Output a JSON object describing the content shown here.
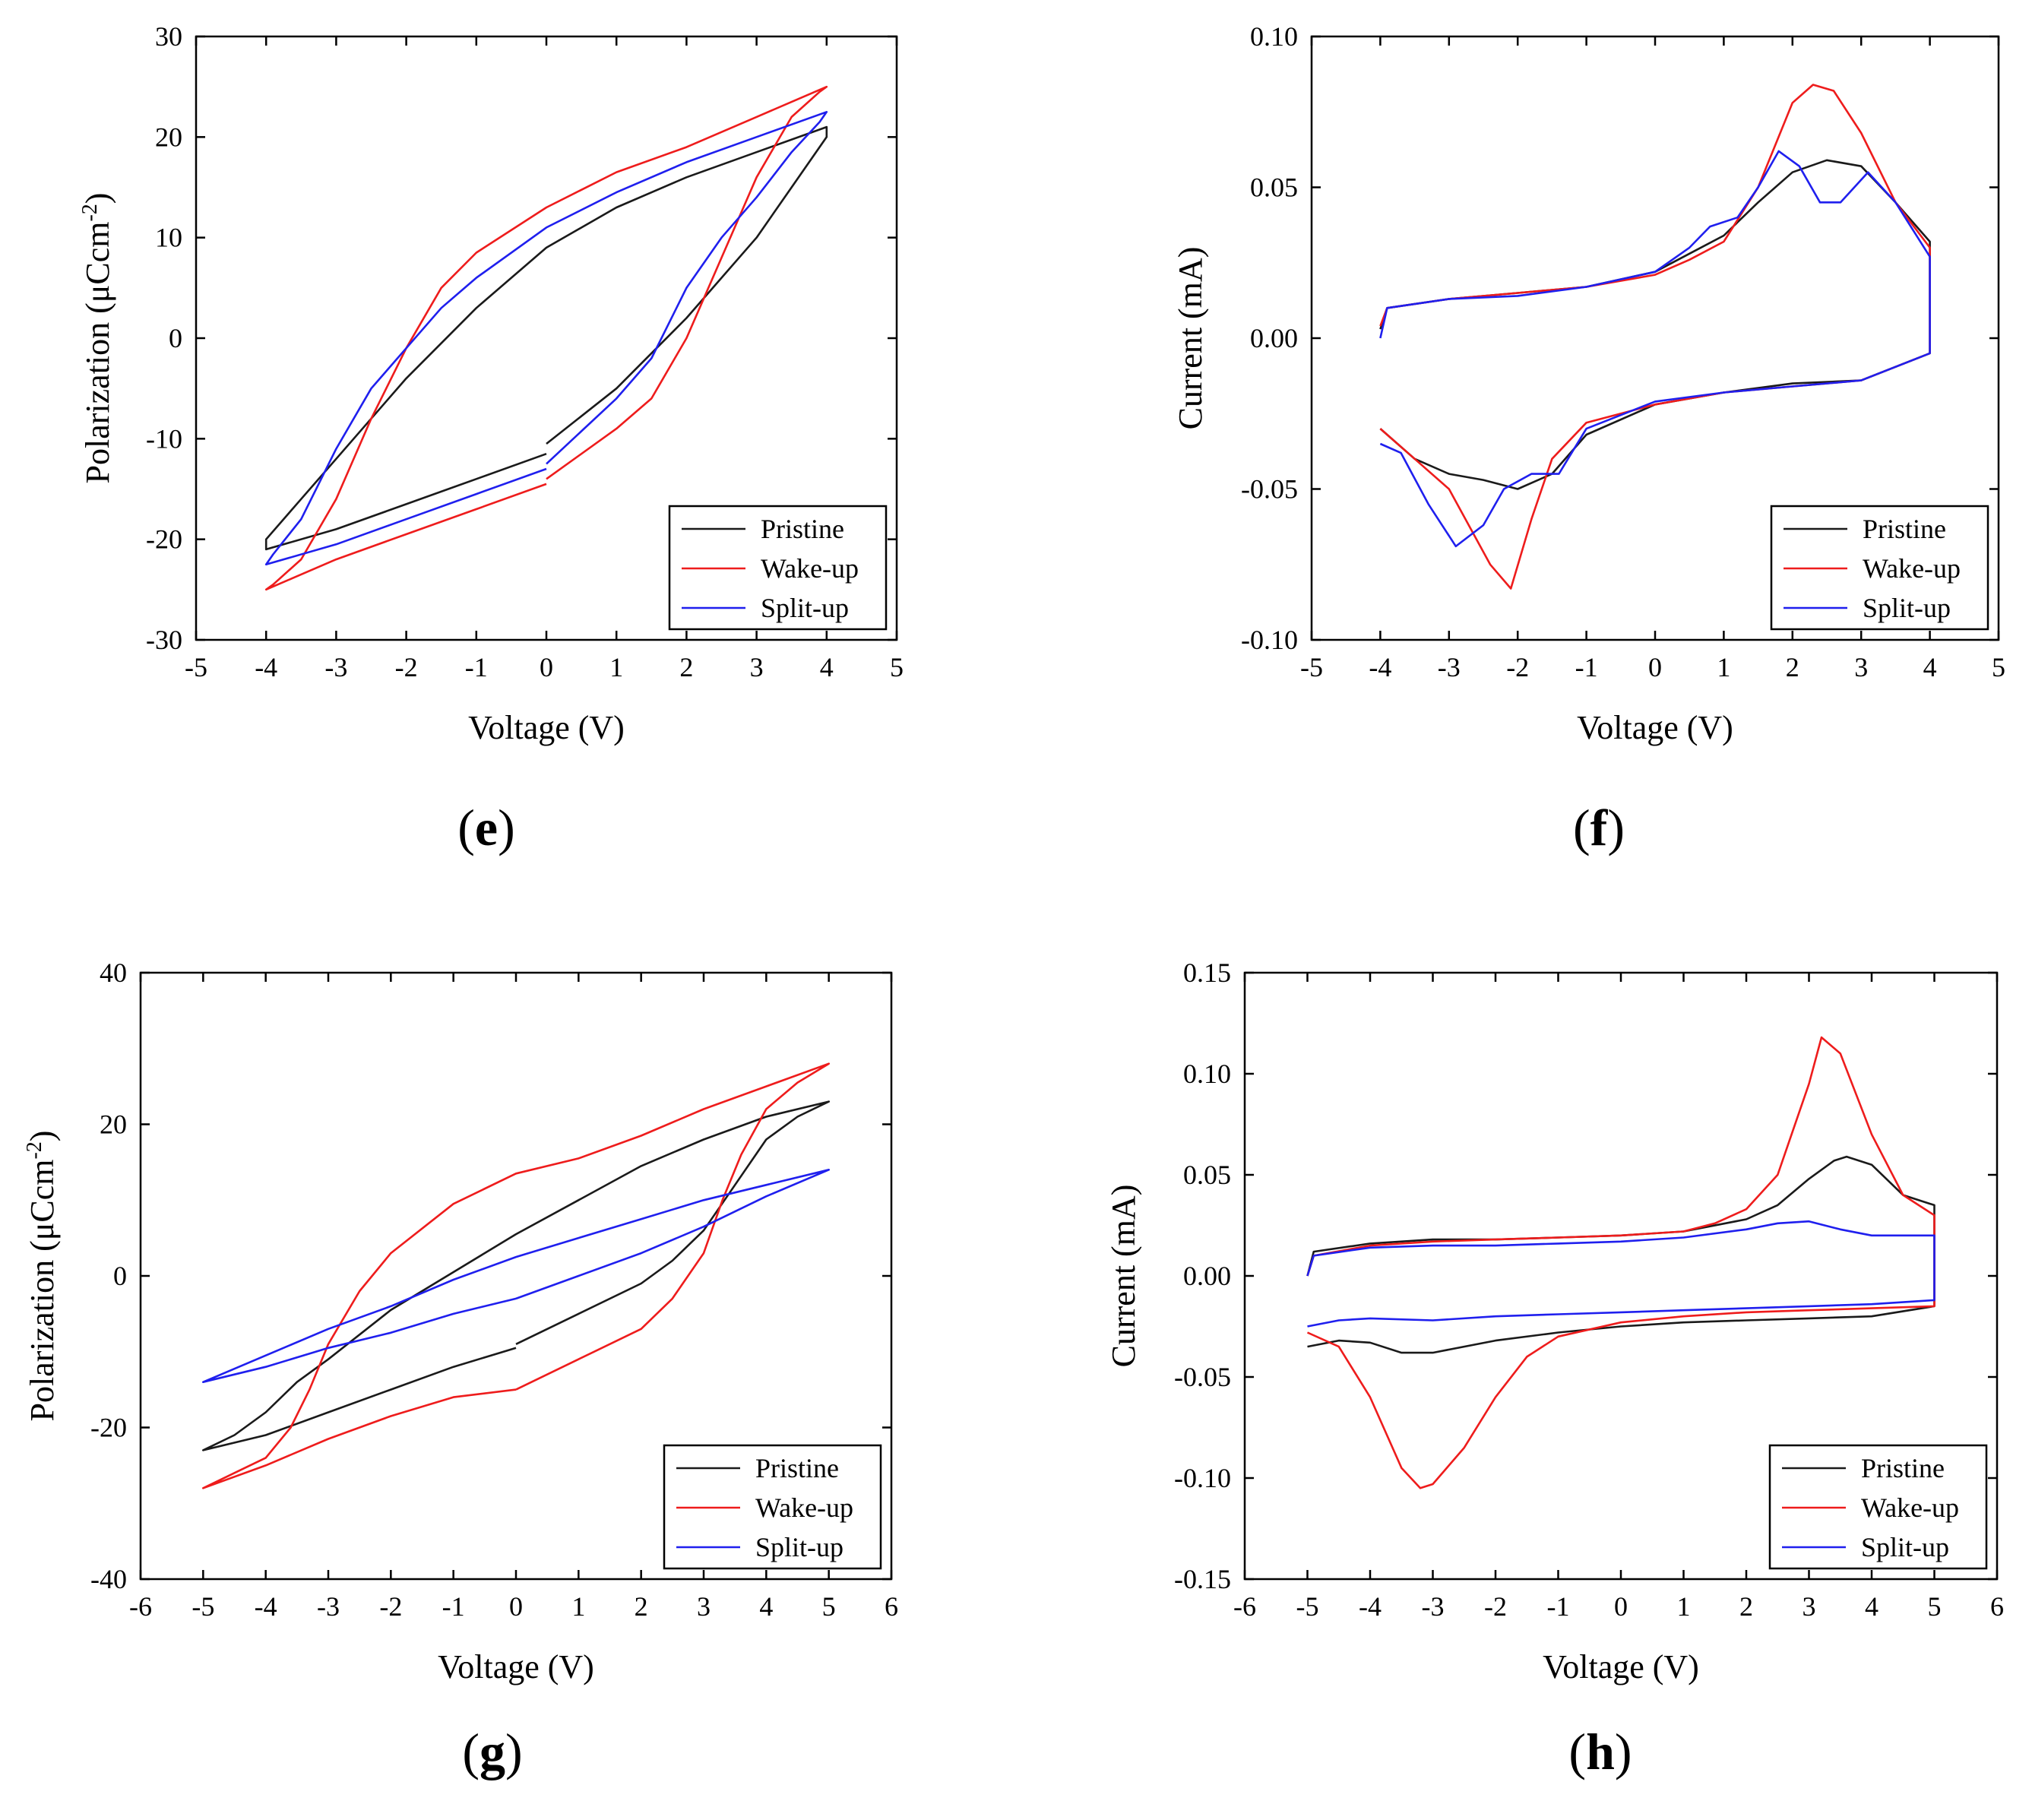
{
  "chart_data": [
    {
      "panel": "e",
      "type": "line",
      "xlabel": "Voltage (V)",
      "ylabel": "Polarization (μCcm",
      "ylabel_sup": "-2",
      "ylabel_close": ")",
      "xlim": [
        -5,
        5
      ],
      "ylim": [
        -30,
        30
      ],
      "xticks": [
        -5,
        -4,
        -3,
        -2,
        -1,
        0,
        1,
        2,
        3,
        4,
        5
      ],
      "yticks": [
        -30,
        -20,
        -10,
        0,
        10,
        20,
        30
      ],
      "legend": [
        "Pristine",
        "Wake-up",
        "Split-up"
      ],
      "series": [
        {
          "name": "Pristine",
          "color": "#1a1a1a",
          "x": [
            0,
            1,
            2,
            3,
            3.5,
            4,
            4,
            3,
            2,
            1,
            0,
            -1,
            -2,
            -3,
            -3.5,
            -4,
            -4,
            -3,
            -2,
            -1,
            0
          ],
          "y": [
            -10.5,
            -5,
            2,
            10,
            15,
            20,
            21,
            18.5,
            16,
            13,
            9,
            3,
            -4,
            -12,
            -16,
            -20,
            -21,
            -19,
            -16.5,
            -14,
            -11.5
          ]
        },
        {
          "name": "Wake-up",
          "color": "#ee1c1c",
          "x": [
            0,
            1,
            1.5,
            2,
            2.5,
            3,
            3.5,
            3.9,
            4,
            3,
            2,
            1,
            0,
            -1,
            -1.5,
            -2,
            -2.5,
            -3,
            -3.5,
            -3.9,
            -4,
            -3,
            -2,
            -1,
            0
          ],
          "y": [
            -14,
            -9,
            -6,
            0,
            8,
            16,
            22,
            24.5,
            25,
            22,
            19,
            16.5,
            13,
            8.5,
            5,
            -1,
            -8,
            -16,
            -22,
            -24.5,
            -25,
            -22,
            -19.5,
            -17,
            -14.5
          ]
        },
        {
          "name": "Split-up",
          "color": "#1f1fee",
          "x": [
            0,
            1,
            1.5,
            2,
            2.5,
            3,
            3.5,
            3.9,
            4,
            3,
            2,
            1,
            0,
            -1,
            -1.5,
            -2,
            -2.5,
            -3,
            -3.5,
            -3.9,
            -4,
            -3,
            -2,
            -1,
            0
          ],
          "y": [
            -12.5,
            -6,
            -2,
            5,
            10,
            14,
            18.5,
            21.5,
            22.5,
            20,
            17.5,
            14.5,
            11,
            6,
            3,
            -1,
            -5,
            -11,
            -18,
            -21.5,
            -22.5,
            -20.5,
            -18,
            -15.5,
            -13
          ]
        }
      ]
    },
    {
      "panel": "f",
      "type": "line",
      "xlabel": "Voltage (V)",
      "ylabel": "Current (mA)",
      "xlim": [
        -5,
        5
      ],
      "ylim": [
        -0.1,
        0.1
      ],
      "xticks": [
        -5,
        -4,
        -3,
        -2,
        -1,
        0,
        1,
        2,
        3,
        4,
        5
      ],
      "yticks": [
        -0.1,
        -0.05,
        0.0,
        0.05,
        0.1
      ],
      "ytick_labels": [
        "-0.10",
        "-0.05",
        "0.00",
        "0.05",
        "0.10"
      ],
      "legend": [
        "Pristine",
        "Wake-up",
        "Split-up"
      ],
      "series": [
        {
          "name": "Pristine",
          "color": "#1a1a1a",
          "x": [
            -4,
            -3.9,
            -3,
            -2,
            -1,
            0,
            0.5,
            1,
            1.5,
            2,
            2.5,
            3,
            3.5,
            4,
            4,
            3,
            2,
            1,
            0,
            -1,
            -1.5,
            -2,
            -2.5,
            -3,
            -3.5,
            -4,
            -4
          ],
          "y": [
            0.003,
            0.01,
            0.013,
            0.015,
            0.017,
            0.022,
            0.028,
            0.034,
            0.045,
            0.055,
            0.059,
            0.057,
            0.045,
            0.032,
            -0.005,
            -0.014,
            -0.015,
            -0.018,
            -0.022,
            -0.032,
            -0.045,
            -0.05,
            -0.047,
            -0.045,
            -0.04,
            -0.03,
            -0.03
          ]
        },
        {
          "name": "Wake-up",
          "color": "#ee1c1c",
          "x": [
            -4,
            -3.9,
            -3,
            -2,
            -1,
            0,
            0.5,
            1,
            1.5,
            2,
            2.3,
            2.6,
            3,
            3.5,
            4,
            4,
            3,
            2,
            1,
            0,
            -1,
            -1.5,
            -1.8,
            -2.1,
            -2.4,
            -3,
            -3.5,
            -4,
            -4
          ],
          "y": [
            0.004,
            0.01,
            0.013,
            0.015,
            0.017,
            0.021,
            0.026,
            0.032,
            0.05,
            0.078,
            0.084,
            0.082,
            0.068,
            0.045,
            0.03,
            -0.005,
            -0.014,
            -0.016,
            -0.018,
            -0.022,
            -0.028,
            -0.04,
            -0.06,
            -0.083,
            -0.075,
            -0.05,
            -0.04,
            -0.03,
            -0.03
          ]
        },
        {
          "name": "Split-up",
          "color": "#1f1fee",
          "x": [
            -4,
            -3.9,
            -3,
            -2,
            -1,
            0,
            0.5,
            0.8,
            1.2,
            1.5,
            1.8,
            2.1,
            2.4,
            2.7,
            3.1,
            3.5,
            4,
            4,
            3,
            2,
            1,
            0,
            -1,
            -1.4,
            -1.8,
            -2.2,
            -2.5,
            -2.9,
            -3.3,
            -3.7,
            -4,
            -4
          ],
          "y": [
            0.0,
            0.01,
            0.013,
            0.014,
            0.017,
            0.022,
            0.03,
            0.037,
            0.04,
            0.05,
            0.062,
            0.057,
            0.045,
            0.045,
            0.055,
            0.045,
            0.027,
            -0.005,
            -0.014,
            -0.016,
            -0.018,
            -0.021,
            -0.03,
            -0.045,
            -0.045,
            -0.05,
            -0.062,
            -0.069,
            -0.055,
            -0.038,
            -0.035,
            -0.035
          ]
        }
      ]
    },
    {
      "panel": "g",
      "type": "line",
      "xlabel": "Voltage (V)",
      "ylabel": "Polarization (μCcm",
      "ylabel_sup": "-2",
      "ylabel_close": ")",
      "xlim": [
        -6,
        6
      ],
      "ylim": [
        -40,
        40
      ],
      "xticks": [
        -6,
        -5,
        -4,
        -3,
        -2,
        -1,
        0,
        1,
        2,
        3,
        4,
        5,
        6
      ],
      "yticks": [
        -40,
        -20,
        0,
        20,
        40
      ],
      "legend": [
        "Pristine",
        "Wake-up",
        "Split-up"
      ],
      "series": [
        {
          "name": "Pristine",
          "color": "#1a1a1a",
          "x": [
            0,
            1,
            2,
            2.5,
            3,
            3.5,
            4,
            4.5,
            5,
            4,
            3,
            2,
            1,
            0,
            -1,
            -2,
            -3,
            -3.5,
            -4,
            -4.5,
            -5,
            -4,
            -3,
            -2,
            -1,
            0
          ],
          "y": [
            -9,
            -5,
            -1,
            2,
            6,
            12,
            18,
            21,
            23,
            21,
            18,
            14.5,
            10,
            5.5,
            0.5,
            -4.5,
            -11,
            -14,
            -18,
            -21,
            -23,
            -21,
            -18,
            -15,
            -12,
            -9.5
          ]
        },
        {
          "name": "Wake-up",
          "color": "#ee1c1c",
          "x": [
            0,
            1,
            2,
            2.5,
            3,
            3.3,
            3.6,
            4,
            4.5,
            5,
            4,
            3,
            2,
            1,
            0,
            -1,
            -2,
            -2.5,
            -3,
            -3.3,
            -3.6,
            -4,
            -4.5,
            -5,
            -4,
            -3,
            -2,
            -1,
            0
          ],
          "y": [
            -15,
            -11,
            -7,
            -3,
            3,
            10,
            16,
            22,
            25.5,
            28,
            25,
            22,
            18.5,
            15.5,
            13.5,
            9.5,
            3,
            -2,
            -9,
            -15,
            -20,
            -24,
            -26,
            -28,
            -25,
            -21.5,
            -18.5,
            -16,
            -15
          ]
        },
        {
          "name": "Split-up",
          "color": "#1f1fee",
          "x": [
            0,
            1,
            2,
            3,
            4,
            5,
            4,
            3,
            2,
            1,
            0,
            -1,
            -2,
            -3,
            -4,
            -5,
            -4,
            -3,
            -2,
            -1,
            0
          ],
          "y": [
            -3,
            0,
            3,
            6.5,
            10.5,
            14,
            12,
            10,
            7.5,
            5,
            2.5,
            -0.5,
            -4,
            -7,
            -10.5,
            -14,
            -12,
            -9.5,
            -7.5,
            -5,
            -3
          ]
        }
      ]
    },
    {
      "panel": "h",
      "type": "line",
      "xlabel": "Voltage (V)",
      "ylabel": "Current (mA)",
      "xlim": [
        -6,
        6
      ],
      "ylim": [
        -0.15,
        0.15
      ],
      "xticks": [
        -6,
        -5,
        -4,
        -3,
        -2,
        -1,
        0,
        1,
        2,
        3,
        4,
        5,
        6
      ],
      "yticks": [
        -0.15,
        -0.1,
        -0.05,
        0.0,
        0.05,
        0.1,
        0.15
      ],
      "ytick_labels": [
        "-0.15",
        "-0.10",
        "-0.05",
        "0.00",
        "0.05",
        "0.10",
        "0.15"
      ],
      "legend": [
        "Pristine",
        "Wake-up",
        "Split-up"
      ],
      "series": [
        {
          "name": "Pristine",
          "color": "#1a1a1a",
          "x": [
            -5,
            -4.9,
            -4,
            -3,
            -2,
            -1,
            0,
            1,
            2,
            2.5,
            3,
            3.4,
            3.6,
            4,
            4.5,
            5,
            5,
            4,
            3,
            2,
            1,
            0,
            -1,
            -2,
            -3,
            -3.5,
            -4,
            -4.5,
            -5,
            -5
          ],
          "y": [
            0.0,
            0.012,
            0.016,
            0.018,
            0.018,
            0.019,
            0.02,
            0.022,
            0.028,
            0.035,
            0.048,
            0.057,
            0.059,
            0.055,
            0.04,
            0.035,
            -0.015,
            -0.02,
            -0.021,
            -0.022,
            -0.023,
            -0.025,
            -0.028,
            -0.032,
            -0.038,
            -0.038,
            -0.033,
            -0.032,
            -0.035,
            -0.035
          ]
        },
        {
          "name": "Wake-up",
          "color": "#ee1c1c",
          "x": [
            -5,
            -4.9,
            -4,
            -3,
            -2,
            -1,
            0,
            1,
            1.5,
            2,
            2.5,
            3,
            3.2,
            3.5,
            4,
            4.5,
            5,
            5,
            4,
            3,
            2,
            1,
            0,
            -1,
            -1.5,
            -2,
            -2.5,
            -3,
            -3.2,
            -3.5,
            -4,
            -4.5,
            -5,
            -5
          ],
          "y": [
            0.0,
            0.01,
            0.015,
            0.017,
            0.018,
            0.019,
            0.02,
            0.022,
            0.026,
            0.033,
            0.05,
            0.095,
            0.118,
            0.11,
            0.07,
            0.04,
            0.03,
            -0.015,
            -0.016,
            -0.017,
            -0.018,
            -0.02,
            -0.023,
            -0.03,
            -0.04,
            -0.06,
            -0.085,
            -0.103,
            -0.105,
            -0.095,
            -0.06,
            -0.035,
            -0.028,
            -0.028
          ]
        },
        {
          "name": "Split-up",
          "color": "#1f1fee",
          "x": [
            -5,
            -4.9,
            -4,
            -3,
            -2,
            -1,
            0,
            1,
            2,
            2.5,
            3,
            3.5,
            4,
            4.5,
            5,
            5,
            4,
            3,
            2,
            1,
            0,
            -1,
            -2,
            -3,
            -4,
            -4.5,
            -5,
            -5
          ],
          "y": [
            0.0,
            0.01,
            0.014,
            0.015,
            0.015,
            0.016,
            0.017,
            0.019,
            0.023,
            0.026,
            0.027,
            0.023,
            0.02,
            0.02,
            0.02,
            -0.012,
            -0.014,
            -0.015,
            -0.016,
            -0.017,
            -0.018,
            -0.019,
            -0.02,
            -0.022,
            -0.021,
            -0.022,
            -0.025,
            -0.025
          ]
        }
      ]
    }
  ],
  "panel_labels": [
    "e",
    "f",
    "g",
    "h"
  ]
}
